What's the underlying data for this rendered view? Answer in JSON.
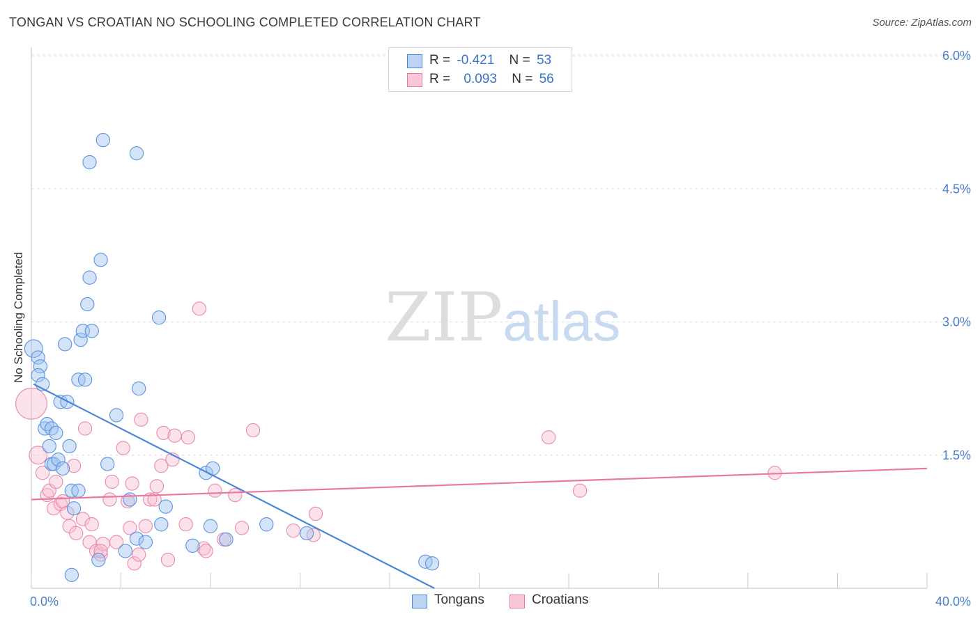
{
  "title": "TONGAN VS CROATIAN NO SCHOOLING COMPLETED CORRELATION CHART",
  "source": "Source: ZipAtlas.com",
  "watermark": {
    "zip": "ZIP",
    "atlas": "atlas"
  },
  "legend": {
    "r_label": "R =",
    "n_label": "N =",
    "series": [
      {
        "name": "Tongans",
        "r": "-0.421",
        "n": "53"
      },
      {
        "name": "Croatians",
        "r": "0.093",
        "n": "56"
      }
    ]
  },
  "chart_data": {
    "type": "scatter",
    "title": "TONGAN VS CROATIAN NO SCHOOLING COMPLETED CORRELATION CHART",
    "xlabel": "",
    "ylabel": "No Schooling Completed",
    "xlim": [
      0,
      40
    ],
    "ylim": [
      0,
      6.25
    ],
    "x_tick_labels": [
      {
        "value": 0,
        "label": "0.0%"
      },
      {
        "value": 40,
        "label": "40.0%"
      }
    ],
    "y_tick_labels": [
      {
        "value": 1.5,
        "label": "1.5%"
      },
      {
        "value": 3.0,
        "label": "3.0%"
      },
      {
        "value": 4.5,
        "label": "4.5%"
      },
      {
        "value": 6.0,
        "label": "6.0%"
      }
    ],
    "colors": {
      "Tongans": "#4a86d8",
      "Croatians": "#e87aa0"
    },
    "series": [
      {
        "name": "Tongans",
        "trend": {
          "x0": 0.1,
          "y0": 2.3,
          "x1": 18.0,
          "y1": 0.0
        },
        "points": [
          [
            0.1,
            2.7,
            16
          ],
          [
            0.3,
            2.6,
            12
          ],
          [
            0.4,
            2.5,
            12
          ],
          [
            0.3,
            2.4,
            12
          ],
          [
            0.5,
            2.3,
            12
          ],
          [
            0.6,
            1.8,
            12
          ],
          [
            0.7,
            1.85,
            12
          ],
          [
            0.8,
            1.6,
            12
          ],
          [
            0.9,
            1.8,
            12
          ],
          [
            1.1,
            1.75,
            12
          ],
          [
            0.9,
            1.4,
            12
          ],
          [
            1.0,
            1.4,
            12
          ],
          [
            1.2,
            1.45,
            12
          ],
          [
            1.4,
            1.35,
            12
          ],
          [
            1.3,
            2.1,
            12
          ],
          [
            1.6,
            2.1,
            12
          ],
          [
            1.5,
            2.75,
            12
          ],
          [
            1.7,
            1.6,
            12
          ],
          [
            1.8,
            1.1,
            12
          ],
          [
            1.9,
            0.9,
            12
          ],
          [
            1.8,
            0.15,
            12
          ],
          [
            2.1,
            2.35,
            12
          ],
          [
            2.2,
            2.8,
            12
          ],
          [
            2.3,
            2.9,
            12
          ],
          [
            2.4,
            2.35,
            12
          ],
          [
            2.5,
            3.2,
            12
          ],
          [
            2.6,
            4.8,
            12
          ],
          [
            2.6,
            3.5,
            12
          ],
          [
            2.7,
            2.9,
            12
          ],
          [
            3.1,
            3.7,
            12
          ],
          [
            3.2,
            5.05,
            12
          ],
          [
            3.4,
            1.4,
            12
          ],
          [
            3.8,
            1.95,
            12
          ],
          [
            4.2,
            0.42,
            12
          ],
          [
            4.4,
            1.0,
            12
          ],
          [
            4.7,
            4.9,
            12
          ],
          [
            4.7,
            0.56,
            12
          ],
          [
            4.8,
            2.25,
            12
          ],
          [
            5.1,
            0.52,
            12
          ],
          [
            5.7,
            3.05,
            12
          ],
          [
            5.8,
            0.72,
            12
          ],
          [
            6.0,
            0.92,
            12
          ],
          [
            7.2,
            0.48,
            12
          ],
          [
            7.8,
            1.3,
            12
          ],
          [
            8.1,
            1.35,
            12
          ],
          [
            8.0,
            0.7,
            12
          ],
          [
            8.7,
            0.55,
            12
          ],
          [
            10.5,
            0.72,
            12
          ],
          [
            12.3,
            0.62,
            12
          ],
          [
            17.6,
            0.3,
            12
          ],
          [
            17.9,
            0.28,
            12
          ],
          [
            3.0,
            0.32,
            12
          ],
          [
            2.1,
            1.1,
            12
          ]
        ]
      },
      {
        "name": "Croatians",
        "trend": {
          "x0": 0.0,
          "y0": 1.0,
          "x1": 40.0,
          "y1": 1.35
        },
        "points": [
          [
            0.0,
            2.08,
            28
          ],
          [
            0.3,
            1.5,
            16
          ],
          [
            0.5,
            1.3,
            12
          ],
          [
            0.7,
            1.05,
            12
          ],
          [
            0.8,
            1.1,
            12
          ],
          [
            1.0,
            0.9,
            12
          ],
          [
            1.1,
            1.2,
            12
          ],
          [
            1.3,
            0.95,
            12
          ],
          [
            1.4,
            0.98,
            12
          ],
          [
            1.6,
            0.85,
            12
          ],
          [
            1.7,
            0.7,
            12
          ],
          [
            1.9,
            1.38,
            12
          ],
          [
            2.0,
            0.62,
            12
          ],
          [
            2.3,
            0.78,
            12
          ],
          [
            2.4,
            1.8,
            12
          ],
          [
            2.6,
            0.52,
            12
          ],
          [
            2.7,
            0.72,
            12
          ],
          [
            2.9,
            0.42,
            12
          ],
          [
            3.1,
            0.38,
            12
          ],
          [
            3.2,
            0.5,
            12
          ],
          [
            3.5,
            1.0,
            12
          ],
          [
            3.6,
            1.2,
            12
          ],
          [
            3.8,
            0.52,
            12
          ],
          [
            4.1,
            1.58,
            12
          ],
          [
            4.3,
            0.98,
            12
          ],
          [
            4.4,
            0.68,
            12
          ],
          [
            4.5,
            1.18,
            12
          ],
          [
            4.6,
            0.28,
            12
          ],
          [
            4.8,
            0.38,
            12
          ],
          [
            4.9,
            1.9,
            12
          ],
          [
            5.1,
            0.7,
            12
          ],
          [
            5.3,
            1.0,
            12
          ],
          [
            5.5,
            1.0,
            12
          ],
          [
            5.6,
            1.15,
            12
          ],
          [
            5.8,
            1.38,
            12
          ],
          [
            5.9,
            1.75,
            12
          ],
          [
            6.1,
            0.32,
            12
          ],
          [
            6.3,
            1.45,
            12
          ],
          [
            6.4,
            1.72,
            12
          ],
          [
            6.9,
            0.72,
            12
          ],
          [
            7.0,
            1.7,
            12
          ],
          [
            7.5,
            3.15,
            12
          ],
          [
            7.7,
            0.45,
            12
          ],
          [
            7.8,
            0.42,
            12
          ],
          [
            8.2,
            1.1,
            12
          ],
          [
            8.6,
            0.55,
            12
          ],
          [
            9.1,
            1.05,
            12
          ],
          [
            9.4,
            0.68,
            12
          ],
          [
            9.9,
            1.78,
            12
          ],
          [
            11.7,
            0.65,
            12
          ],
          [
            12.6,
            0.6,
            12
          ],
          [
            12.7,
            0.84,
            12
          ],
          [
            23.1,
            1.7,
            12
          ],
          [
            24.5,
            1.1,
            12
          ],
          [
            33.2,
            1.3,
            12
          ],
          [
            3.1,
            0.42,
            12
          ]
        ]
      }
    ]
  }
}
